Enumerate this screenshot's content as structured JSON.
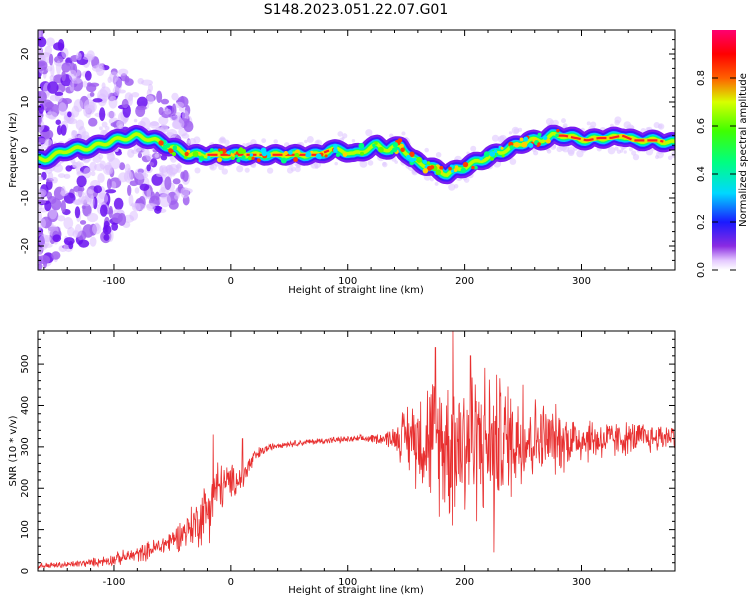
{
  "title": "S148.2023.051.22.07.G01",
  "chart_data": [
    {
      "type": "heatmap",
      "xlabel": "Height of straight line (km)",
      "ylabel": "Frequency (Hz)",
      "xlim": [
        -165,
        380
      ],
      "ylim": [
        -25,
        25
      ],
      "x_ticks": [
        -100,
        0,
        100,
        200,
        300
      ],
      "y_ticks": [
        -20,
        -10,
        0,
        10,
        20
      ],
      "colorbar": {
        "label": "Normalized spectral amplitude",
        "range": [
          0,
          1
        ],
        "ticks": [
          "0.0",
          "0.2",
          "0.4",
          "0.6",
          "0.8"
        ],
        "colormap": "rainbow (white-violet-blue-cyan-green-yellow-red-magenta)"
      },
      "ridge_frequency": {
        "x": [
          -160,
          -140,
          -120,
          -100,
          -80,
          -65,
          -55,
          -45,
          -35,
          -25,
          -20,
          0,
          50,
          75,
          85,
          95,
          105,
          115,
          125,
          135,
          145,
          155,
          165,
          175,
          185,
          195,
          205,
          215,
          225,
          235,
          245,
          255,
          265,
          275,
          285,
          295,
          305,
          315,
          325,
          335,
          345,
          355,
          365,
          375
        ],
        "y": [
          -2,
          0,
          0.5,
          2,
          3,
          2,
          1,
          0,
          -1,
          -1,
          -1,
          -1,
          -1,
          -1,
          0,
          0,
          -1,
          0,
          1,
          0,
          1,
          -2,
          -3,
          -4,
          -5,
          -4,
          -3,
          -2,
          -1,
          0,
          1,
          2,
          2,
          3,
          3,
          2.5,
          2,
          2.5,
          2.5,
          3,
          2,
          2,
          2,
          1.5
        ]
      }
    },
    {
      "type": "line",
      "xlabel": "Height of straight line (km)",
      "ylabel": "SNR (10 * v/v)",
      "xlim": [
        -165,
        380
      ],
      "ylim": [
        0,
        580
      ],
      "x_ticks": [
        -100,
        0,
        100,
        200,
        300
      ],
      "y_ticks": [
        0,
        100,
        200,
        300,
        400,
        500
      ],
      "color": "#e83030",
      "envelope": {
        "x": [
          -165,
          -140,
          -120,
          -100,
          -80,
          -60,
          -50,
          -40,
          -30,
          -20,
          -15,
          -10,
          -5,
          0,
          10,
          15,
          20,
          30,
          40,
          60,
          80,
          100,
          120,
          130,
          140,
          150,
          160,
          170,
          180,
          190,
          200,
          210,
          220,
          230,
          240,
          250,
          260,
          270,
          280,
          290,
          300,
          310,
          320,
          330,
          340,
          350,
          360,
          370,
          380
        ],
        "mean": [
          12,
          15,
          20,
          28,
          40,
          60,
          75,
          95,
          115,
          150,
          185,
          200,
          210,
          215,
          225,
          250,
          275,
          295,
          305,
          310,
          315,
          318,
          320,
          320,
          322,
          325,
          325,
          320,
          315,
          310,
          315,
          320,
          310,
          315,
          320,
          318,
          320,
          318,
          315,
          318,
          320,
          318,
          316,
          318,
          320,
          322,
          320,
          325,
          330
        ],
        "spread": [
          8,
          8,
          10,
          15,
          20,
          25,
          30,
          40,
          60,
          80,
          90,
          70,
          50,
          40,
          40,
          30,
          20,
          10,
          8,
          8,
          8,
          8,
          10,
          15,
          30,
          80,
          120,
          150,
          170,
          200,
          200,
          190,
          180,
          160,
          140,
          120,
          100,
          90,
          80,
          70,
          60,
          55,
          50,
          45,
          40,
          40,
          35,
          35,
          30
        ]
      },
      "peaks": [
        [
          190,
          580
        ],
        [
          175,
          540
        ],
        [
          205,
          520
        ],
        [
          250,
          450
        ],
        [
          -15,
          330
        ],
        [
          10,
          320
        ],
        [
          225,
          45
        ]
      ]
    }
  ]
}
